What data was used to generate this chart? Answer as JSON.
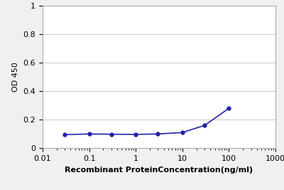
{
  "x": [
    0.03,
    0.1,
    0.3,
    1.0,
    3.0,
    10.0,
    30.0,
    100.0
  ],
  "y": [
    0.095,
    0.1,
    0.098,
    0.097,
    0.1,
    0.11,
    0.16,
    0.28
  ],
  "line_color": "#2222aa",
  "marker_color": "#2222aa",
  "marker_style": "o",
  "marker_size": 4,
  "line_width": 1.2,
  "xlabel": "Recombinant ProteinConcentration(ng/ml)",
  "ylabel": "OD 450",
  "xlim": [
    0.01,
    1000
  ],
  "ylim": [
    0,
    1.0
  ],
  "yticks": [
    0,
    0.2,
    0.4,
    0.6,
    0.8,
    1.0
  ],
  "ytick_labels": [
    "0",
    "0.2",
    "0.4",
    "0.6",
    "0.8",
    "1"
  ],
  "xtick_vals": [
    0.01,
    0.1,
    1,
    10,
    100,
    1000
  ],
  "xtick_labels": [
    "0.01",
    "0.1",
    "1",
    "10",
    "100",
    "1000"
  ],
  "xlabel_fontsize": 8,
  "ylabel_fontsize": 8,
  "tick_fontsize": 8,
  "background_color": "#f0f0f0",
  "plot_bg_color": "#ffffff",
  "grid_color": "#cccccc"
}
